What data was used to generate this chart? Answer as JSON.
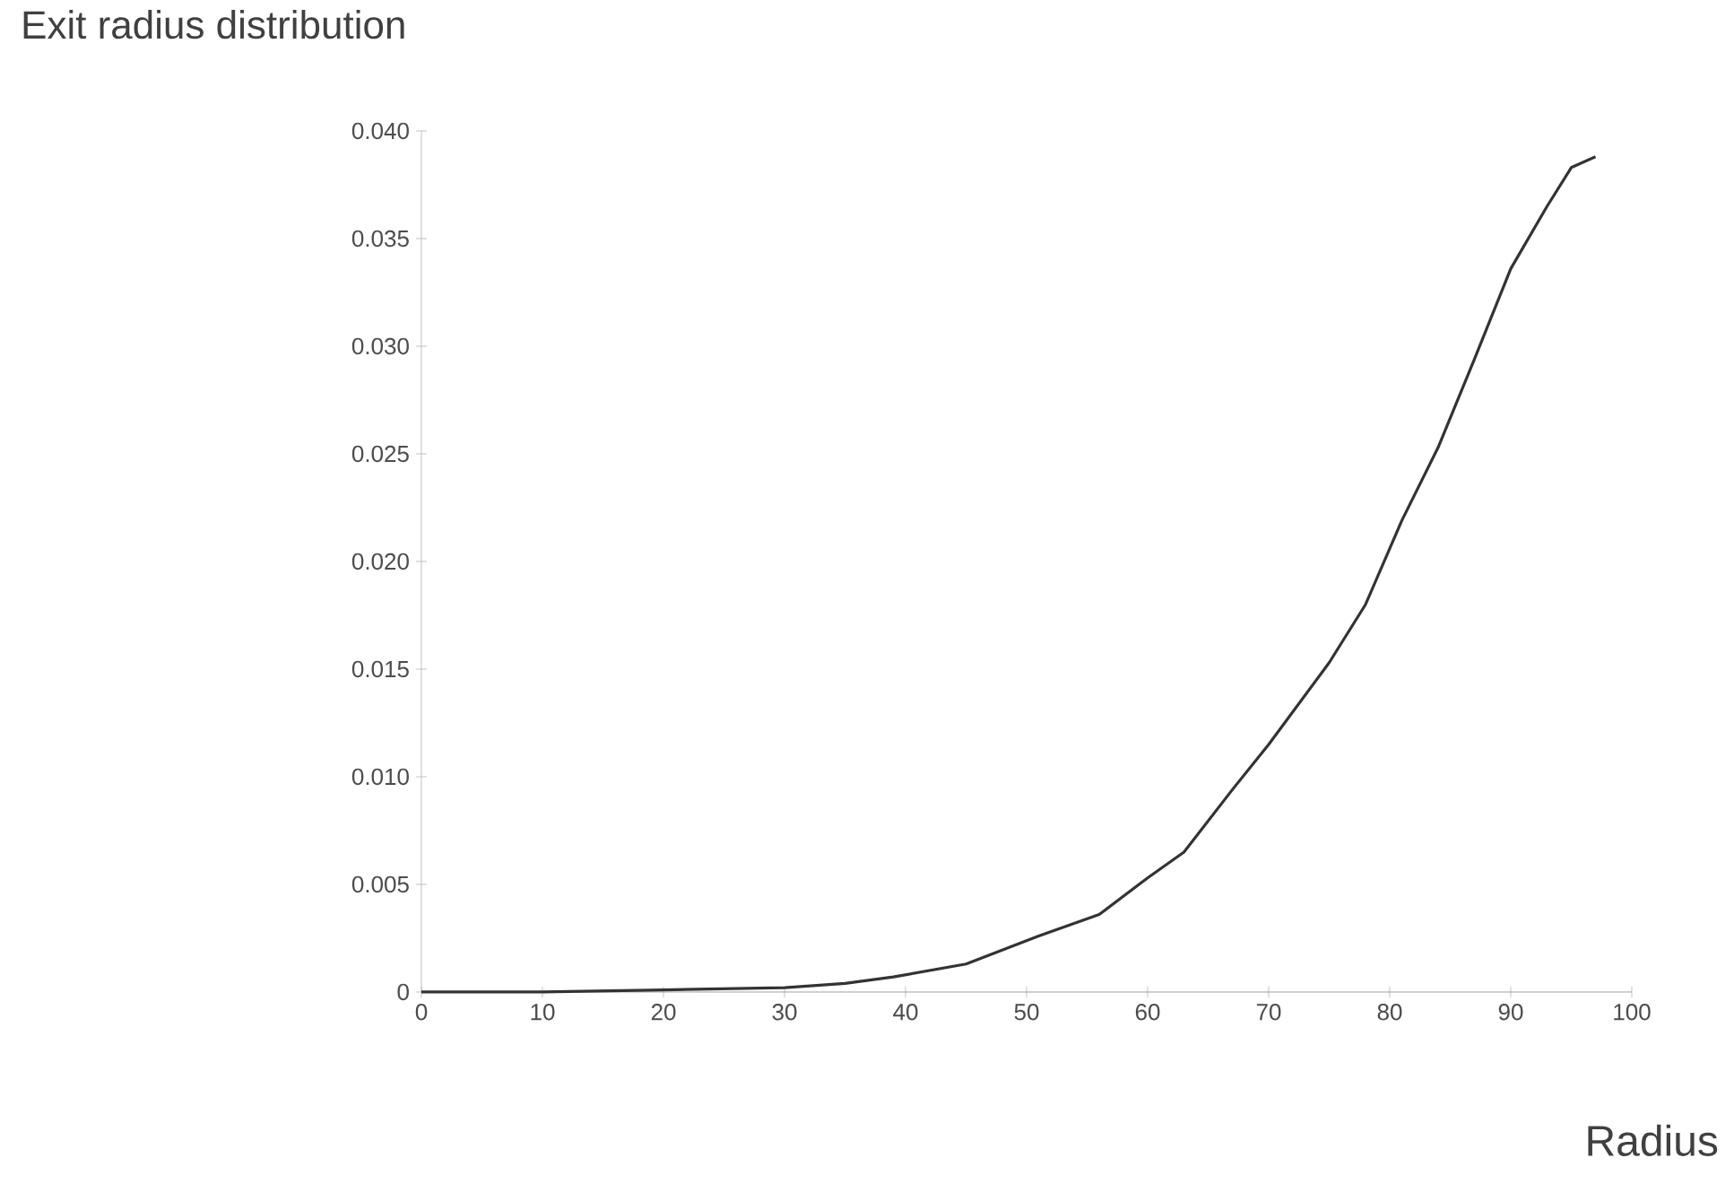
{
  "chart_data": {
    "type": "line",
    "title": "Exit radius distribution",
    "xlabel": "Radius",
    "x": [
      0,
      10,
      20,
      30,
      35,
      39,
      45,
      51,
      56,
      60,
      63,
      67,
      70,
      75,
      78,
      81,
      84,
      87,
      90,
      93,
      95,
      97
    ],
    "series": [
      {
        "color": "#333333",
        "values": [
          0,
          0,
          0.0001,
          0.0002,
          0.0004,
          0.0007,
          0.0013,
          0.0026,
          0.0036,
          0.0053,
          0.0065,
          0.0094,
          0.0115,
          0.0153,
          0.018,
          0.0219,
          0.0253,
          0.0294,
          0.0336,
          0.0365,
          0.0383,
          0.0388
        ]
      }
    ],
    "xlim": [
      0,
      100
    ],
    "ylim": [
      0,
      0.04
    ],
    "xticks": [
      0,
      10,
      20,
      30,
      40,
      50,
      60,
      70,
      80,
      90,
      100
    ],
    "yticks": [
      0,
      {
        "value": 0.005,
        "label": "0.005"
      },
      {
        "value": 0.01,
        "label": "0.010"
      },
      {
        "value": 0.015,
        "label": "0.015"
      },
      {
        "value": 0.02,
        "label": "0.020"
      },
      {
        "value": 0.025,
        "label": "0.025"
      },
      {
        "value": 0.03,
        "label": "0.030"
      },
      {
        "value": 0.035,
        "label": "0.035"
      },
      {
        "value": 0.04,
        "label": "0.040"
      }
    ],
    "marker": "none",
    "line_style": "solid"
  }
}
